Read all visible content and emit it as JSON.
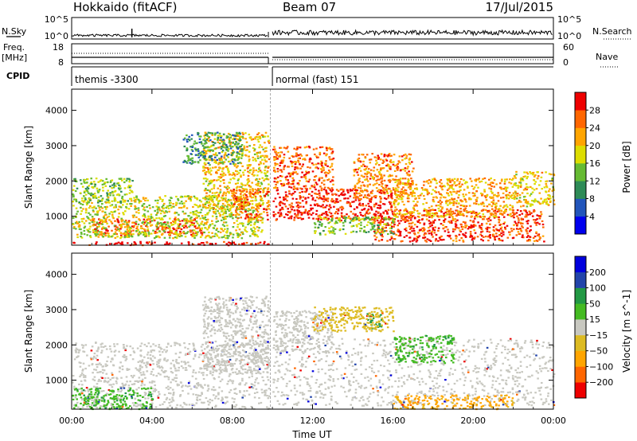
{
  "header": {
    "title": "Hokkaido (fitACF)",
    "beam": "Beam 07",
    "date": "17/Jul/2015"
  },
  "noise_panel": {
    "left_label": "N.Sky",
    "right_label": "N.Search",
    "left_ticks": [
      "10^5",
      "10^0"
    ],
    "right_ticks": [
      "10^5",
      "10^0"
    ]
  },
  "freq_panel": {
    "left_label_top": "Freq.",
    "left_label_unit": "[MHz]",
    "right_label": "Nave",
    "left_ticks": [
      "18",
      "8"
    ],
    "right_ticks": [
      "60",
      "0"
    ]
  },
  "cpid": {
    "label": "CPID",
    "segments": [
      {
        "text": "themis -3300",
        "start_hour": 0,
        "end_hour": 9.8
      },
      {
        "text": "normal (fast) 151",
        "start_hour": 10.0,
        "end_hour": 24
      }
    ]
  },
  "time_axis": {
    "label": "Time UT",
    "range_hours": [
      0,
      24
    ],
    "tick_labels": [
      "00:00",
      "04:00",
      "08:00",
      "12:00",
      "16:00",
      "20:00",
      "00:00"
    ],
    "tick_hours": [
      0,
      4,
      8,
      12,
      16,
      20,
      24
    ]
  },
  "chart_data": [
    {
      "type": "heatmap",
      "name": "power",
      "ylabel": "Slant Range [km]",
      "yticks": [
        1000,
        2000,
        3000,
        4000
      ],
      "ylim": [
        180,
        4600
      ],
      "colorbar_label": "Power [dB]",
      "colorbar_ticks": [
        4,
        8,
        12,
        16,
        20,
        24,
        28
      ],
      "colorbar_range": [
        0,
        32
      ],
      "colorbar_colors": [
        "#0000ee",
        "#2255bb",
        "#2e8b57",
        "#66bb33",
        "#dddd00",
        "#ffa500",
        "#ff6600",
        "#ee0000"
      ],
      "data_gap_hours": [
        9.8,
        10.0
      ],
      "scatter_regions": [
        {
          "t0": 0.0,
          "t1": 9.8,
          "r0": 200,
          "r1": 300,
          "level": 30
        },
        {
          "t0": 1.0,
          "t1": 6.5,
          "r0": 450,
          "r1": 950,
          "level": 27
        },
        {
          "t0": 0.0,
          "t1": 9.5,
          "r0": 400,
          "r1": 1600,
          "level": 17
        },
        {
          "t0": 0.0,
          "t1": 3.0,
          "r0": 1400,
          "r1": 2100,
          "level": 15
        },
        {
          "t0": 6.5,
          "t1": 9.8,
          "r0": 1200,
          "r1": 3400,
          "level": 20
        },
        {
          "t0": 5.5,
          "t1": 8.5,
          "r0": 2500,
          "r1": 3400,
          "level": 11
        },
        {
          "t0": 8.0,
          "t1": 9.8,
          "r0": 900,
          "r1": 1800,
          "level": 26
        },
        {
          "t0": 10.0,
          "t1": 16.0,
          "r0": 900,
          "r1": 1800,
          "level": 29
        },
        {
          "t0": 10.0,
          "t1": 13.0,
          "r0": 1800,
          "r1": 3000,
          "level": 26
        },
        {
          "t0": 14.0,
          "t1": 17.0,
          "r0": 1500,
          "r1": 2800,
          "level": 24
        },
        {
          "t0": 15.0,
          "t1": 23.5,
          "r0": 300,
          "r1": 1200,
          "level": 28
        },
        {
          "t0": 16.0,
          "t1": 22.0,
          "r0": 1000,
          "r1": 2100,
          "level": 22
        },
        {
          "t0": 12.0,
          "t1": 16.0,
          "r0": 500,
          "r1": 1000,
          "level": 15
        },
        {
          "t0": 22.0,
          "t1": 24.0,
          "r0": 1300,
          "r1": 2300,
          "level": 20
        }
      ]
    },
    {
      "type": "heatmap",
      "name": "velocity",
      "ylabel": "Slant Range [km]",
      "yticks": [
        1000,
        2000,
        3000,
        4000
      ],
      "ylim": [
        180,
        4600
      ],
      "colorbar_label": "Velocity [m s^-1]",
      "colorbar_ticks": [
        -200,
        -100,
        -50,
        -15,
        15,
        50,
        100,
        200
      ],
      "colorbar_colors": [
        "#ee0000",
        "#ff6600",
        "#ffa500",
        "#ddbb22",
        "#c8c8c0",
        "#44bb22",
        "#229944",
        "#2244aa",
        "#0000dd"
      ],
      "data_gap_hours": [
        9.8,
        10.0
      ],
      "scatter_regions": [
        {
          "t0": 0.0,
          "t1": 9.8,
          "r0": 200,
          "r1": 2100,
          "level": 0
        },
        {
          "t0": 6.5,
          "t1": 9.8,
          "r0": 1200,
          "r1": 3400,
          "level": 0
        },
        {
          "t0": 0.0,
          "t1": 4.0,
          "r0": 200,
          "r1": 800,
          "level": 40
        },
        {
          "t0": 10.0,
          "t1": 24.0,
          "r0": 300,
          "r1": 2200,
          "level": 0
        },
        {
          "t0": 10.0,
          "t1": 13.0,
          "r0": 1800,
          "r1": 3000,
          "level": 0
        },
        {
          "t0": 14.6,
          "t1": 15.4,
          "r0": 2450,
          "r1": 2900,
          "level": 80
        },
        {
          "t0": 16.0,
          "t1": 19.0,
          "r0": 1500,
          "r1": 2300,
          "level": 40
        },
        {
          "t0": 16.0,
          "t1": 22.0,
          "r0": 200,
          "r1": 600,
          "level": -60
        },
        {
          "t0": 12.0,
          "t1": 16.0,
          "r0": 2400,
          "r1": 3100,
          "level": -30
        }
      ]
    }
  ]
}
